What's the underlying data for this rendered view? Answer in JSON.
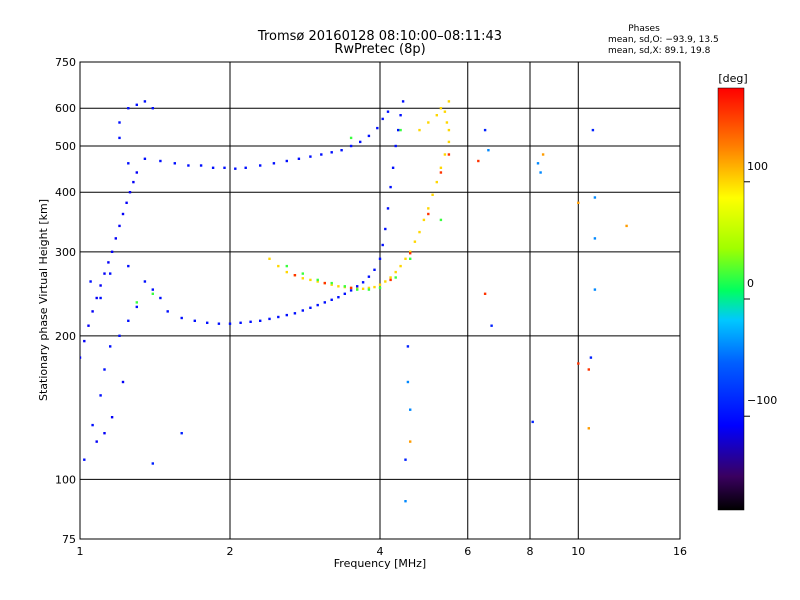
{
  "title_line1": "Tromsø 20160128 08:10:00–08:11:43",
  "title_line2": "RwPretec (8p)",
  "info": {
    "heading": "Phases",
    "line1": "mean, sd,O: −93.9, 13.5",
    "line2": "mean, sd,X:  89.1, 19.8"
  },
  "colorbar": {
    "label": "[deg]",
    "ticks": [
      {
        "value": 100,
        "label": "100"
      },
      {
        "value": 0,
        "label": "0"
      },
      {
        "value": -100,
        "label": "−100"
      }
    ],
    "range": [
      -180,
      180
    ]
  },
  "chart_data": {
    "type": "scatter",
    "xlabel": "Frequency [MHz]",
    "ylabel": "Stationary phase Virtual Height [km]",
    "xscale": "log",
    "yscale": "log",
    "xlim": [
      1,
      16
    ],
    "ylim": [
      75,
      750
    ],
    "xticks": [
      {
        "value": 1,
        "label": "1"
      },
      {
        "value": 2,
        "label": "2"
      },
      {
        "value": 4,
        "label": "4"
      },
      {
        "value": 6,
        "label": "6"
      },
      {
        "value": 8,
        "label": "8"
      },
      {
        "value": 10,
        "label": "10"
      },
      {
        "value": 16,
        "label": "16"
      }
    ],
    "yticks": [
      {
        "value": 75,
        "label": "75"
      },
      {
        "value": 100,
        "label": "100"
      },
      {
        "value": 200,
        "label": "200"
      },
      {
        "value": 300,
        "label": "300"
      },
      {
        "value": 400,
        "label": "400"
      },
      {
        "value": 500,
        "label": "500"
      },
      {
        "value": 600,
        "label": "600"
      },
      {
        "value": 750,
        "label": "750"
      }
    ],
    "grid": true,
    "traces": [
      {
        "name": "",
        "phase": -100,
        "points": [
          [
            1.02,
            110
          ],
          [
            1.06,
            130
          ],
          [
            1.1,
            150
          ],
          [
            1.12,
            170
          ],
          [
            1.15,
            190
          ],
          [
            1.2,
            200
          ],
          [
            1.25,
            215
          ],
          [
            1.3,
            230
          ],
          [
            1.1,
            240
          ],
          [
            1.05,
            260
          ],
          [
            1.15,
            270
          ],
          [
            1.25,
            280
          ],
          [
            1.35,
            260
          ],
          [
            1.4,
            250
          ],
          [
            1.45,
            240
          ],
          [
            1.5,
            225
          ],
          [
            1.6,
            218
          ],
          [
            1.7,
            215
          ],
          [
            1.8,
            213
          ],
          [
            1.9,
            212
          ],
          [
            2.0,
            212
          ],
          [
            2.1,
            213
          ],
          [
            2.2,
            214
          ],
          [
            2.3,
            215
          ],
          [
            2.4,
            217
          ],
          [
            2.5,
            219
          ],
          [
            2.6,
            221
          ],
          [
            2.7,
            223
          ],
          [
            2.8,
            226
          ],
          [
            2.9,
            229
          ],
          [
            3.0,
            232
          ],
          [
            3.1,
            235
          ],
          [
            3.2,
            238
          ],
          [
            3.3,
            241
          ],
          [
            3.4,
            245
          ],
          [
            3.5,
            249
          ],
          [
            3.6,
            254
          ],
          [
            3.7,
            259
          ],
          [
            3.8,
            266
          ],
          [
            3.9,
            275
          ],
          [
            4.0,
            290
          ],
          [
            4.05,
            310
          ],
          [
            4.1,
            335
          ],
          [
            4.15,
            370
          ],
          [
            4.2,
            410
          ],
          [
            4.25,
            450
          ],
          [
            4.3,
            500
          ],
          [
            4.35,
            540
          ],
          [
            4.4,
            580
          ],
          [
            4.45,
            620
          ]
        ]
      },
      {
        "name": "",
        "phase": -100,
        "points": [
          [
            1.25,
            460
          ],
          [
            1.35,
            470
          ],
          [
            1.45,
            465
          ],
          [
            1.55,
            460
          ],
          [
            1.65,
            455
          ],
          [
            1.75,
            455
          ],
          [
            1.85,
            450
          ],
          [
            1.95,
            450
          ],
          [
            2.05,
            448
          ],
          [
            2.15,
            450
          ],
          [
            2.3,
            455
          ],
          [
            2.45,
            460
          ],
          [
            2.6,
            465
          ],
          [
            2.75,
            470
          ],
          [
            2.9,
            475
          ],
          [
            3.05,
            480
          ],
          [
            3.2,
            485
          ],
          [
            3.35,
            490
          ],
          [
            3.5,
            500
          ],
          [
            3.65,
            510
          ],
          [
            3.8,
            525
          ],
          [
            3.95,
            545
          ],
          [
            4.05,
            570
          ],
          [
            4.15,
            590
          ],
          [
            1.2,
            520
          ],
          [
            1.2,
            560
          ],
          [
            1.25,
            600
          ],
          [
            1.3,
            610
          ],
          [
            1.35,
            620
          ],
          [
            1.4,
            600
          ]
        ]
      },
      {
        "name": "",
        "phase": -110,
        "points": [
          [
            1.0,
            180
          ],
          [
            1.02,
            195
          ],
          [
            1.04,
            210
          ],
          [
            1.06,
            225
          ],
          [
            1.08,
            240
          ],
          [
            1.1,
            255
          ],
          [
            1.12,
            270
          ],
          [
            1.14,
            285
          ],
          [
            1.16,
            300
          ],
          [
            1.18,
            320
          ],
          [
            1.2,
            340
          ],
          [
            1.22,
            360
          ],
          [
            1.24,
            380
          ],
          [
            1.26,
            400
          ],
          [
            1.28,
            420
          ],
          [
            1.3,
            440
          ],
          [
            1.08,
            120
          ],
          [
            1.12,
            125
          ],
          [
            1.16,
            135
          ],
          [
            1.22,
            160
          ]
        ]
      },
      {
        "name": "",
        "phase": 100,
        "points": [
          [
            2.4,
            290
          ],
          [
            2.5,
            280
          ],
          [
            2.6,
            272
          ],
          [
            2.7,
            268
          ],
          [
            2.8,
            264
          ],
          [
            2.9,
            262
          ],
          [
            3.0,
            260
          ],
          [
            3.1,
            258
          ],
          [
            3.2,
            256
          ],
          [
            3.3,
            254
          ],
          [
            3.4,
            253
          ],
          [
            3.5,
            252
          ],
          [
            3.6,
            251
          ],
          [
            3.7,
            251
          ],
          [
            3.8,
            252
          ],
          [
            3.9,
            253
          ],
          [
            4.0,
            256
          ],
          [
            4.1,
            260
          ],
          [
            4.2,
            265
          ],
          [
            4.3,
            272
          ],
          [
            4.4,
            280
          ],
          [
            4.5,
            290
          ],
          [
            4.6,
            300
          ],
          [
            4.7,
            315
          ],
          [
            4.8,
            330
          ],
          [
            4.9,
            350
          ],
          [
            5.0,
            370
          ],
          [
            5.1,
            395
          ],
          [
            5.2,
            420
          ],
          [
            5.3,
            450
          ],
          [
            5.4,
            480
          ],
          [
            5.5,
            510
          ],
          [
            5.5,
            540
          ],
          [
            5.45,
            560
          ],
          [
            5.4,
            590
          ],
          [
            5.5,
            620
          ],
          [
            5.3,
            600
          ],
          [
            5.2,
            580
          ],
          [
            5.0,
            560
          ],
          [
            4.8,
            540
          ]
        ]
      },
      {
        "name": "",
        "phase": 20,
        "points": [
          [
            2.6,
            280
          ],
          [
            2.8,
            270
          ],
          [
            3.0,
            262
          ],
          [
            3.2,
            258
          ],
          [
            3.4,
            254
          ],
          [
            3.6,
            250
          ],
          [
            3.8,
            250
          ],
          [
            4.0,
            252
          ],
          [
            4.3,
            265
          ],
          [
            4.6,
            290
          ],
          [
            1.4,
            245
          ],
          [
            1.3,
            235
          ],
          [
            4.4,
            540
          ],
          [
            3.5,
            520
          ],
          [
            5.3,
            350
          ]
        ]
      },
      {
        "name": "",
        "phase": 160,
        "points": [
          [
            2.7,
            268
          ],
          [
            3.1,
            258
          ],
          [
            3.5,
            252
          ],
          [
            4.2,
            262
          ],
          [
            4.6,
            298
          ],
          [
            5.0,
            360
          ],
          [
            5.3,
            440
          ],
          [
            5.5,
            480
          ],
          [
            6.5,
            245
          ],
          [
            10.0,
            175
          ],
          [
            10.5,
            170
          ],
          [
            6.3,
            465
          ]
        ]
      },
      {
        "name": "",
        "phase": -40,
        "points": [
          [
            4.5,
            90
          ],
          [
            4.6,
            140
          ],
          [
            4.55,
            160
          ],
          [
            6.6,
            490
          ],
          [
            8.4,
            440
          ],
          [
            8.3,
            460
          ],
          [
            10.8,
            390
          ],
          [
            10.8,
            320
          ],
          [
            10.8,
            250
          ]
        ]
      },
      {
        "name": "",
        "phase": 120,
        "points": [
          [
            10.0,
            380
          ],
          [
            12.5,
            340
          ],
          [
            8.5,
            480
          ],
          [
            10.5,
            128
          ],
          [
            4.6,
            120
          ]
        ]
      },
      {
        "name": "",
        "phase": -90,
        "points": [
          [
            1.6,
            125
          ],
          [
            1.4,
            108
          ],
          [
            4.5,
            110
          ],
          [
            4.55,
            190
          ],
          [
            8.1,
            132
          ],
          [
            10.6,
            180
          ],
          [
            10.7,
            540
          ],
          [
            6.7,
            210
          ],
          [
            6.5,
            540
          ]
        ]
      }
    ]
  }
}
